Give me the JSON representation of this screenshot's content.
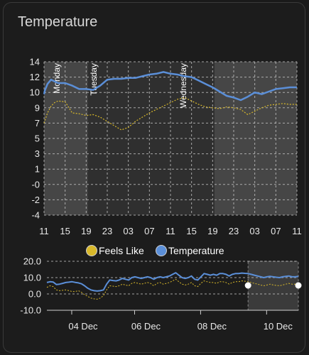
{
  "card": {
    "title": "Temperature"
  },
  "colors": {
    "temperature": "#5b8fd8",
    "feels_like": "#d8b82a",
    "card_bg": "#1c1c1c",
    "weekend_band": "#464646",
    "weekday_band": "#2f2f2f",
    "grid": "#cfcfcf"
  },
  "chart_data": [
    {
      "type": "line",
      "title": "",
      "y_ticks": [
        "14",
        "12",
        "10",
        "9",
        "7",
        "5",
        "3",
        "1",
        "-0",
        "-2",
        "-4"
      ],
      "x_ticks": [
        "11",
        "15",
        "19",
        "23",
        "03",
        "07",
        "11",
        "15",
        "19",
        "23",
        "03",
        "07",
        "11"
      ],
      "day_labels": [
        "Monday",
        "Tuesday",
        "Wednesday"
      ],
      "grid": true,
      "series": [
        {
          "name": "Temperature",
          "x": [
            0,
            0.2,
            1,
            2,
            3,
            4,
            6,
            8,
            10,
            12,
            14,
            16,
            18,
            20,
            22,
            24,
            26,
            28,
            30,
            32,
            34,
            36,
            38,
            40,
            42,
            44,
            46,
            48,
            50,
            52,
            54,
            56,
            58,
            60,
            62,
            64,
            66,
            68,
            70,
            72
          ],
          "values": [
            10.2,
            10.6,
            11.4,
            11.9,
            11.7,
            11.5,
            11.5,
            11.2,
            10.8,
            10.8,
            10.7,
            11.2,
            11.9,
            12.0,
            12.0,
            12.1,
            12.1,
            12.3,
            12.5,
            12.6,
            12.8,
            12.6,
            12.5,
            12.3,
            12.2,
            11.8,
            11.4,
            11.0,
            10.5,
            10.0,
            9.8,
            9.5,
            9.9,
            10.4,
            10.2,
            10.5,
            10.8,
            10.9,
            11.0,
            11.0
          ]
        },
        {
          "name": "Feels Like",
          "x": [
            0,
            1,
            2,
            3,
            4,
            6,
            8,
            10,
            12,
            14,
            16,
            18,
            20,
            22,
            24,
            26,
            28,
            30,
            32,
            34,
            36,
            38,
            40,
            42,
            44,
            46,
            48,
            50,
            52,
            54,
            56,
            58,
            60,
            62,
            64,
            66,
            68,
            70,
            72
          ],
          "values": [
            6.8,
            8.0,
            8.8,
            9.2,
            9.4,
            9.3,
            8.0,
            7.9,
            7.7,
            7.8,
            7.5,
            7.0,
            6.5,
            6.0,
            6.3,
            7.0,
            7.5,
            8.0,
            8.4,
            8.8,
            9.2,
            9.6,
            9.8,
            9.4,
            9.0,
            8.7,
            8.6,
            8.5,
            8.7,
            8.6,
            8.4,
            7.8,
            8.2,
            8.6,
            8.9,
            9.0,
            9.1,
            9.0,
            9.0
          ]
        }
      ],
      "day_bands": [
        {
          "from": 0,
          "to": 12.5,
          "style": "weekend"
        },
        {
          "from": 12.5,
          "to": 48.5,
          "style": "weekday"
        },
        {
          "from": 48.5,
          "to": 72,
          "style": "weekend"
        }
      ],
      "ylim": [
        -4,
        14
      ],
      "xlim": [
        0,
        72
      ]
    },
    {
      "type": "line",
      "title": "",
      "y_ticks": [
        "20.0",
        "10.0",
        "0.0",
        "-10.0"
      ],
      "x_ticks": [
        "04 Dec",
        "06 Dec",
        "08 Dec",
        "10 Dec"
      ],
      "legend": [
        "Feels Like",
        "Temperature"
      ],
      "legend_position": "top",
      "grid": true,
      "ylim": [
        -10,
        20
      ],
      "series": [
        {
          "name": "Temperature",
          "x": [
            0,
            0.1,
            0.2,
            0.3,
            0.4,
            0.5,
            0.6,
            0.7,
            0.8,
            0.9,
            1.0,
            1.1,
            1.2,
            1.3,
            1.4,
            1.5,
            1.6,
            1.7,
            1.8,
            1.9,
            2.0,
            2.1,
            2.2,
            2.3,
            2.4,
            2.5,
            2.6,
            2.7,
            2.8,
            2.9,
            3.0,
            3.1,
            3.2,
            3.3,
            3.4,
            3.5,
            3.6,
            3.7,
            3.8,
            3.9,
            4.0,
            4.1,
            4.2,
            4.3,
            4.4,
            4.5,
            4.6,
            4.7,
            4.8,
            4.9,
            5.0,
            5.1,
            5.2,
            5.3,
            5.4,
            5.5,
            5.6,
            5.7,
            5.8,
            5.9,
            6.0,
            6.1,
            6.2,
            6.3,
            6.4,
            6.5,
            6.6,
            6.7,
            6.8,
            6.9,
            7.0,
            7.1,
            7.2,
            7.3,
            7.4,
            7.5,
            7.6,
            7.7,
            7.8,
            7.9,
            8.0
          ],
          "values": [
            7,
            7.5,
            7.3,
            5.8,
            6.0,
            6.5,
            7.0,
            7.2,
            7.5,
            7.1,
            6.8,
            6.2,
            5.0,
            3.5,
            2.5,
            2.0,
            1.8,
            2.0,
            2.5,
            6.0,
            8.5,
            8.2,
            8.0,
            8.5,
            9.5,
            9.0,
            8.5,
            10.0,
            10.5,
            10.0,
            9.5,
            10.0,
            10.5,
            10.0,
            9.0,
            10.0,
            10.5,
            10.0,
            10.5,
            11.0,
            12.0,
            13.0,
            11.5,
            10.0,
            9.5,
            10.0,
            11.0,
            9.0,
            8.5,
            10.5,
            12.5,
            12.0,
            11.5,
            12.0,
            11.5,
            12.5,
            12.5,
            12.0,
            11.0,
            12.0,
            12.5,
            12.5,
            12.8,
            12.6,
            12.5,
            12.0,
            11.5,
            11.0,
            10.5,
            10.0,
            10.5,
            10.8,
            10.5,
            10.2,
            10.0,
            10.5,
            10.8,
            11.0,
            10.5,
            10.5,
            10.8
          ]
        },
        {
          "name": "Feels Like",
          "x": [
            0,
            0.1,
            0.2,
            0.3,
            0.4,
            0.5,
            0.6,
            0.7,
            0.8,
            0.9,
            1.0,
            1.1,
            1.2,
            1.3,
            1.4,
            1.5,
            1.6,
            1.7,
            1.8,
            1.9,
            2.0,
            2.1,
            2.2,
            2.3,
            2.4,
            2.5,
            2.6,
            2.7,
            2.8,
            2.9,
            3.0,
            3.1,
            3.2,
            3.3,
            3.4,
            3.5,
            3.6,
            3.7,
            3.8,
            3.9,
            4.0,
            4.1,
            4.2,
            4.3,
            4.4,
            4.5,
            4.6,
            4.7,
            4.8,
            4.9,
            5.0,
            5.1,
            5.2,
            5.3,
            5.4,
            5.5,
            5.6,
            5.7,
            5.8,
            5.9,
            6.0,
            6.1,
            6.2,
            6.3,
            6.4,
            6.5,
            6.6,
            6.7,
            6.8,
            6.9,
            7.0,
            7.1,
            7.2,
            7.3,
            7.4,
            7.5,
            7.6,
            7.7,
            7.8,
            7.9,
            8.0
          ],
          "values": [
            4,
            5,
            4.5,
            2.5,
            2,
            2.2,
            2.5,
            2,
            1.5,
            1.5,
            2,
            1,
            -0.5,
            -1.5,
            -2.5,
            -3,
            -3.2,
            -2.5,
            -1,
            2.5,
            5,
            4.8,
            4.5,
            5,
            6,
            5.5,
            5,
            6.5,
            7,
            6.5,
            6,
            6.5,
            7,
            6.5,
            5,
            6.5,
            7,
            6,
            6.5,
            7,
            8,
            9,
            7.5,
            6,
            5.5,
            6,
            7,
            5,
            4.5,
            6.5,
            8,
            7.5,
            7,
            7,
            6.5,
            7.5,
            7.5,
            7,
            6,
            7,
            7.5,
            7.5,
            8,
            7.8,
            7.5,
            7,
            6.5,
            6,
            5.5,
            5,
            5.5,
            6,
            5.5,
            5.2,
            5,
            5.5,
            6,
            6.5,
            6,
            6,
            6.5
          ]
        }
      ],
      "selection": {
        "from": 6.4,
        "to": 8.0
      }
    }
  ]
}
